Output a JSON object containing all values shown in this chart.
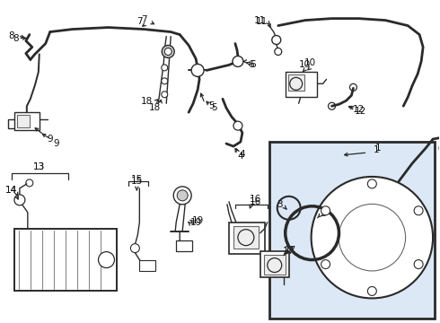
{
  "bg_color": "#ffffff",
  "line_color": "#2a2a2a",
  "box_bg": "#dce8f5",
  "box_border": "#2a2a2a",
  "fig_width": 4.9,
  "fig_height": 3.6,
  "dpi": 100,
  "label_fontsize": 7.5
}
